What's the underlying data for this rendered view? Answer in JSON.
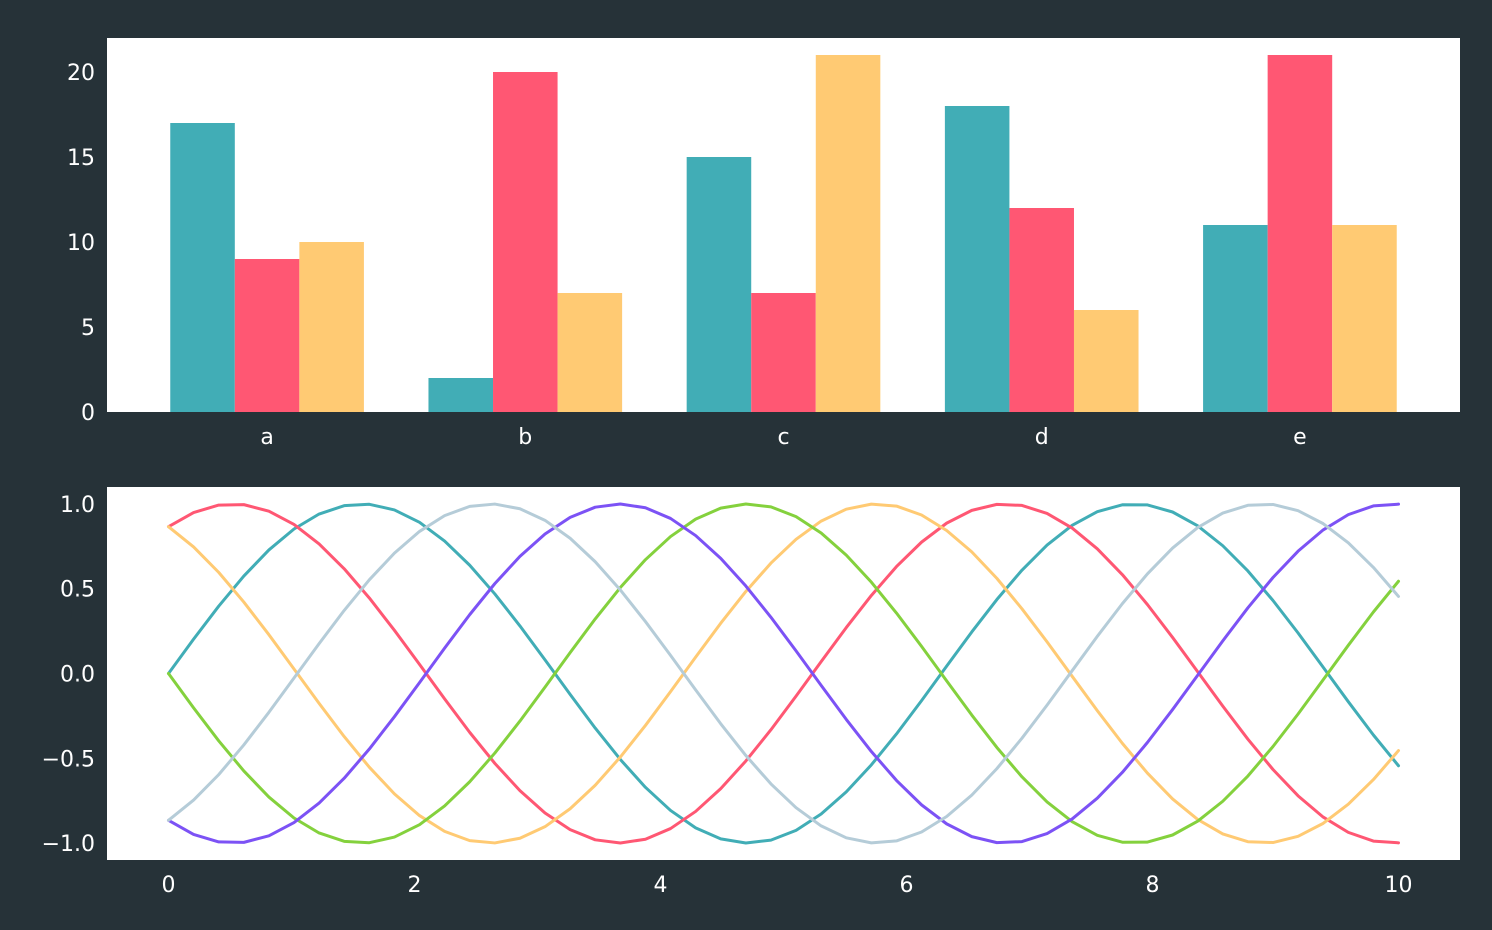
{
  "figure": {
    "background": "#263238",
    "axes_background": "#ffffff",
    "text_color": "#ffffff"
  },
  "chart_data": [
    {
      "type": "bar",
      "categories": [
        "a",
        "b",
        "c",
        "d",
        "e"
      ],
      "series": [
        {
          "values": [
            17,
            2,
            15,
            18,
            11
          ],
          "color": "#41adb6"
        },
        {
          "values": [
            9,
            20,
            7,
            12,
            21
          ],
          "color": "#ff5773"
        },
        {
          "values": [
            10,
            7,
            21,
            6,
            11
          ],
          "color": "#ffca73"
        }
      ],
      "ylim": [
        0,
        22
      ],
      "yticks": [
        0,
        5,
        10,
        15,
        20
      ],
      "ytick_labels": [
        "0",
        "5",
        "10",
        "15",
        "20"
      ],
      "title": "",
      "xlabel": "",
      "ylabel": "",
      "grid": false,
      "legend": false
    },
    {
      "type": "line",
      "x_range": [
        0,
        10
      ],
      "num_points": 50,
      "series": [
        {
          "formula": "sin(x + 0*pi/3)",
          "color": "#41adb6"
        },
        {
          "formula": "sin(x + 1*pi/3)",
          "color": "#ff5773"
        },
        {
          "formula": "sin(x + 2*pi/3)",
          "color": "#ffca73"
        },
        {
          "formula": "sin(x + 3*pi/3)",
          "color": "#84d13d"
        },
        {
          "formula": "sin(x + 4*pi/3)",
          "color": "#7c52f5"
        },
        {
          "formula": "sin(x + 5*pi/3)",
          "color": "#b5ccd8"
        }
      ],
      "xlim": [
        -0.5,
        10.5
      ],
      "ylim": [
        -1.1,
        1.1
      ],
      "xticks": [
        0,
        2,
        4,
        6,
        8,
        10
      ],
      "xtick_labels": [
        "0",
        "2",
        "4",
        "6",
        "8",
        "10"
      ],
      "yticks": [
        1.0,
        0.5,
        0.0,
        -0.5,
        -1.0
      ],
      "ytick_labels": [
        "1.0",
        "0.5",
        "0.0",
        "−0.5",
        "−1.0"
      ],
      "title": "",
      "xlabel": "",
      "ylabel": "",
      "grid": false,
      "legend": false
    }
  ]
}
